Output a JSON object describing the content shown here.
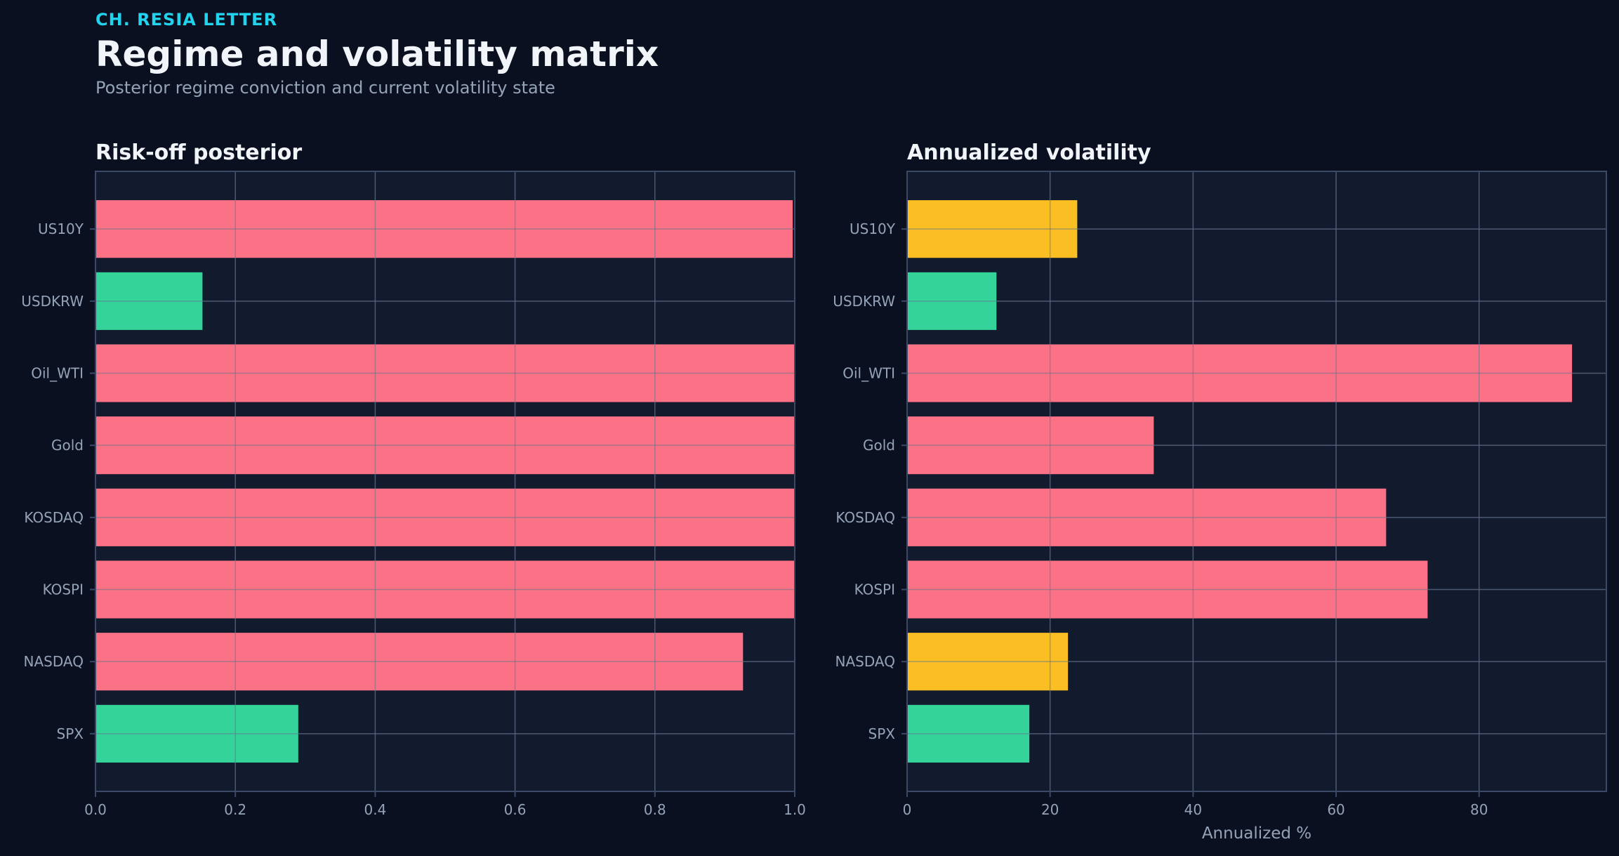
{
  "header": {
    "kicker": "CH. RESIA LETTER",
    "title": "Regime and volatility matrix",
    "subtitle": "Posterior regime conviction and current volatility state"
  },
  "colors": {
    "background": "#0b1020",
    "panel": "#121a2e",
    "frame": "#3b4866",
    "grid": "#2a3550",
    "tick_text": "#94a3b8",
    "title_text": "#f1f5f9",
    "kicker": "#22d3ee",
    "risk_off": "#fb7185",
    "risk_on": "#34d399",
    "neutral": "#fbbf24"
  },
  "chart_data": [
    {
      "type": "bar",
      "orientation": "horizontal",
      "title": "Risk-off posterior",
      "xlabel": "",
      "categories": [
        "US10Y",
        "USDKRW",
        "Oil_WTI",
        "Gold",
        "KOSDAQ",
        "KOSPI",
        "NASDAQ",
        "SPX"
      ],
      "values": [
        0.997,
        0.153,
        1.0,
        1.0,
        1.0,
        1.0,
        0.926,
        0.29
      ],
      "bar_colors": [
        "risk_off",
        "risk_on",
        "risk_off",
        "risk_off",
        "risk_off",
        "risk_off",
        "risk_off",
        "risk_on"
      ],
      "xlim": [
        0,
        1.0
      ],
      "xticks": [
        0.0,
        0.2,
        0.4,
        0.6,
        0.8,
        1.0
      ],
      "xtick_labels": [
        "0.0",
        "0.2",
        "0.4",
        "0.6",
        "0.8",
        "1.0"
      ],
      "grid": true
    },
    {
      "type": "bar",
      "orientation": "horizontal",
      "title": "Annualized volatility",
      "xlabel": "Annualized %",
      "categories": [
        "US10Y",
        "USDKRW",
        "Oil_WTI",
        "Gold",
        "KOSDAQ",
        "KOSPI",
        "NASDAQ",
        "SPX"
      ],
      "values": [
        23.8,
        12.5,
        93.0,
        34.5,
        67.0,
        72.8,
        22.5,
        17.1
      ],
      "bar_colors": [
        "neutral",
        "risk_on",
        "risk_off",
        "risk_off",
        "risk_off",
        "risk_off",
        "neutral",
        "risk_on"
      ],
      "xlim": [
        0,
        97.8
      ],
      "xticks": [
        0,
        20,
        40,
        60,
        80
      ],
      "xtick_labels": [
        "0",
        "20",
        "40",
        "60",
        "80"
      ],
      "grid": true
    }
  ]
}
